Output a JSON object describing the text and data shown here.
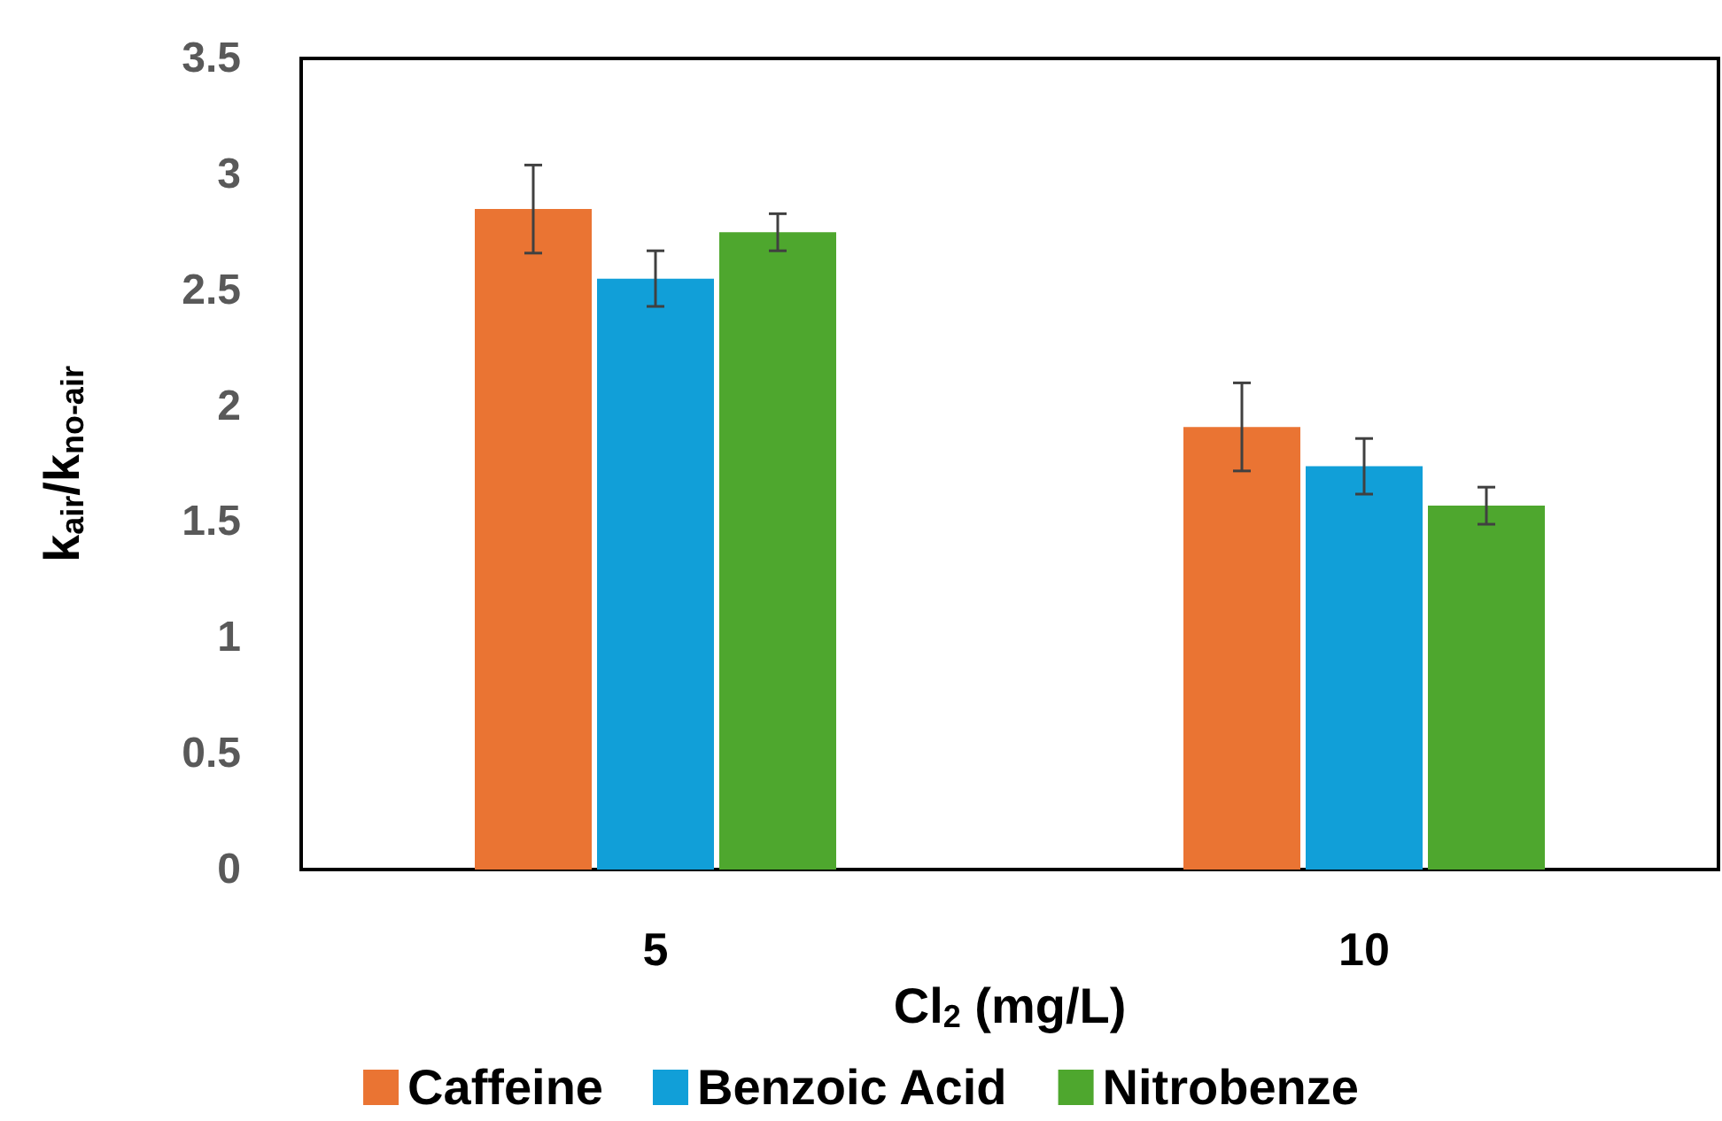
{
  "chart_data": {
    "type": "bar",
    "xlabel": "Cl$_{2}$ (mg/L)",
    "ylabel": "k$_{air}$/k$_{no-air}$",
    "categories": [
      "5",
      "10"
    ],
    "series": [
      {
        "name": "Caffeine",
        "color": "#ea7433",
        "values": [
          2.85,
          1.91
        ],
        "errors": [
          0.19,
          0.19
        ]
      },
      {
        "name": "Benzoic Acid",
        "color": "#119fd8",
        "values": [
          2.55,
          1.74
        ],
        "errors": [
          0.12,
          0.12
        ]
      },
      {
        "name": "Nitrobenze",
        "color": "#4ea72e",
        "values": [
          2.75,
          1.57
        ],
        "errors": [
          0.08,
          0.08
        ]
      }
    ],
    "ylim": [
      0,
      3.5
    ],
    "yticks": [
      0,
      0.5,
      1,
      1.5,
      2,
      2.5,
      3,
      3.5
    ],
    "grid": false,
    "legend": "bottom"
  }
}
